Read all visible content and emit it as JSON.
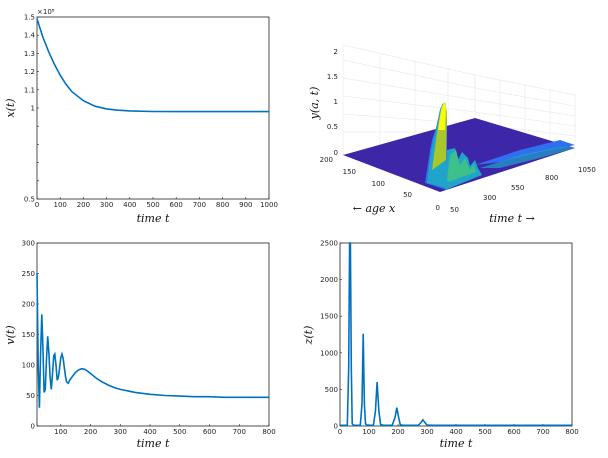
{
  "chart_data": [
    {
      "id": "x",
      "type": "line",
      "xlabel": "time t",
      "ylabel": "x(t)",
      "exponent_label": "×10⁸",
      "xlim": [
        0,
        1000
      ],
      "ylim": [
        0.5,
        1.5
      ],
      "xticks": [
        0,
        100,
        200,
        300,
        400,
        500,
        600,
        700,
        800,
        900,
        1000
      ],
      "yticks": [
        0.5,
        1,
        1.5
      ],
      "ytick_labels": [
        "0.5",
        "1",
        "1.5"
      ],
      "yticks_minor": [
        0.6,
        0.7,
        0.8,
        0.9,
        1.1,
        1.2,
        1.3,
        1.4
      ],
      "ytick_labels_minor": [
        "",
        "",
        "",
        "",
        "1.1",
        "1.2",
        "1.3",
        "1.4"
      ],
      "color": "#0072bd",
      "series": [
        {
          "x": [
            0,
            25,
            50,
            75,
            100,
            125,
            150,
            200,
            250,
            300,
            350,
            400,
            500,
            600,
            700,
            800,
            900,
            1000
          ],
          "y": [
            1.49,
            1.39,
            1.31,
            1.24,
            1.18,
            1.13,
            1.09,
            1.04,
            1.01,
            0.995,
            0.988,
            0.984,
            0.981,
            0.98,
            0.98,
            0.98,
            0.98,
            0.98
          ]
        }
      ]
    },
    {
      "id": "y",
      "type": "surface",
      "zlabel": "y(a, t)",
      "xlabel": "← age x",
      "ylabel": "time t →",
      "age_ticks": [
        "200",
        "150",
        "100",
        "50",
        "0"
      ],
      "time_ticks": [
        "50",
        "300",
        "550",
        "800",
        "1050"
      ],
      "palette": [
        "#3e26a8",
        "#2f6ff0",
        "#1fa5c9",
        "#3dc08a",
        "#a9c62d",
        "#f0c02c",
        "#f9fb0e"
      ]
    },
    {
      "id": "v",
      "type": "line",
      "xlabel": "time t",
      "ylabel": "v(t)",
      "xlim": [
        20,
        800
      ],
      "ylim": [
        0,
        300
      ],
      "xticks": [
        100,
        200,
        300,
        400,
        500,
        600,
        700,
        800
      ],
      "yticks": [
        0,
        50,
        100,
        150,
        200,
        250,
        300
      ],
      "color": "#0072bd",
      "series": [
        {
          "x": [
            20,
            24,
            28,
            32,
            36,
            40,
            44,
            48,
            52,
            56,
            60,
            64,
            68,
            72,
            76,
            80,
            84,
            88,
            92,
            96,
            100,
            104,
            108,
            112,
            116,
            120,
            125,
            130,
            140,
            150,
            160,
            170,
            180,
            190,
            200,
            220,
            240,
            260,
            280,
            300,
            350,
            400,
            450,
            500,
            550,
            600,
            650,
            700,
            750,
            800
          ],
          "y": [
            250,
            100,
            30,
            120,
            183,
            130,
            55,
            60,
            110,
            147,
            120,
            80,
            60,
            85,
            115,
            118,
            100,
            75,
            80,
            95,
            112,
            118,
            110,
            95,
            80,
            72,
            70,
            75,
            82,
            88,
            92,
            94,
            93,
            90,
            86,
            78,
            72,
            67,
            63,
            60,
            55,
            52,
            50,
            49,
            48,
            48,
            47,
            47,
            47,
            47
          ]
        }
      ]
    },
    {
      "id": "z",
      "type": "line",
      "xlabel": "time t",
      "ylabel": "z(t)",
      "xlim": [
        0,
        800
      ],
      "ylim": [
        0,
        2500
      ],
      "xticks": [
        0,
        100,
        200,
        300,
        400,
        500,
        600,
        700,
        800
      ],
      "yticks": [
        0,
        500,
        1000,
        1500,
        2000,
        2500
      ],
      "color": "#0072bd",
      "series": [
        {
          "x": [
            0,
            25,
            30,
            33,
            36,
            39,
            42,
            48,
            70,
            76,
            80,
            84,
            88,
            94,
            115,
            122,
            128,
            134,
            140,
            150,
            180,
            190,
            196,
            202,
            208,
            220,
            270,
            280,
            286,
            292,
            300,
            320,
            400,
            500,
            600,
            700,
            800
          ],
          "y": [
            10,
            10,
            800,
            2600,
            2600,
            800,
            30,
            10,
            10,
            300,
            1260,
            300,
            30,
            10,
            10,
            200,
            600,
            200,
            20,
            10,
            10,
            120,
            250,
            120,
            15,
            10,
            10,
            50,
            85,
            50,
            12,
            10,
            10,
            10,
            10,
            10,
            10
          ]
        }
      ]
    }
  ]
}
